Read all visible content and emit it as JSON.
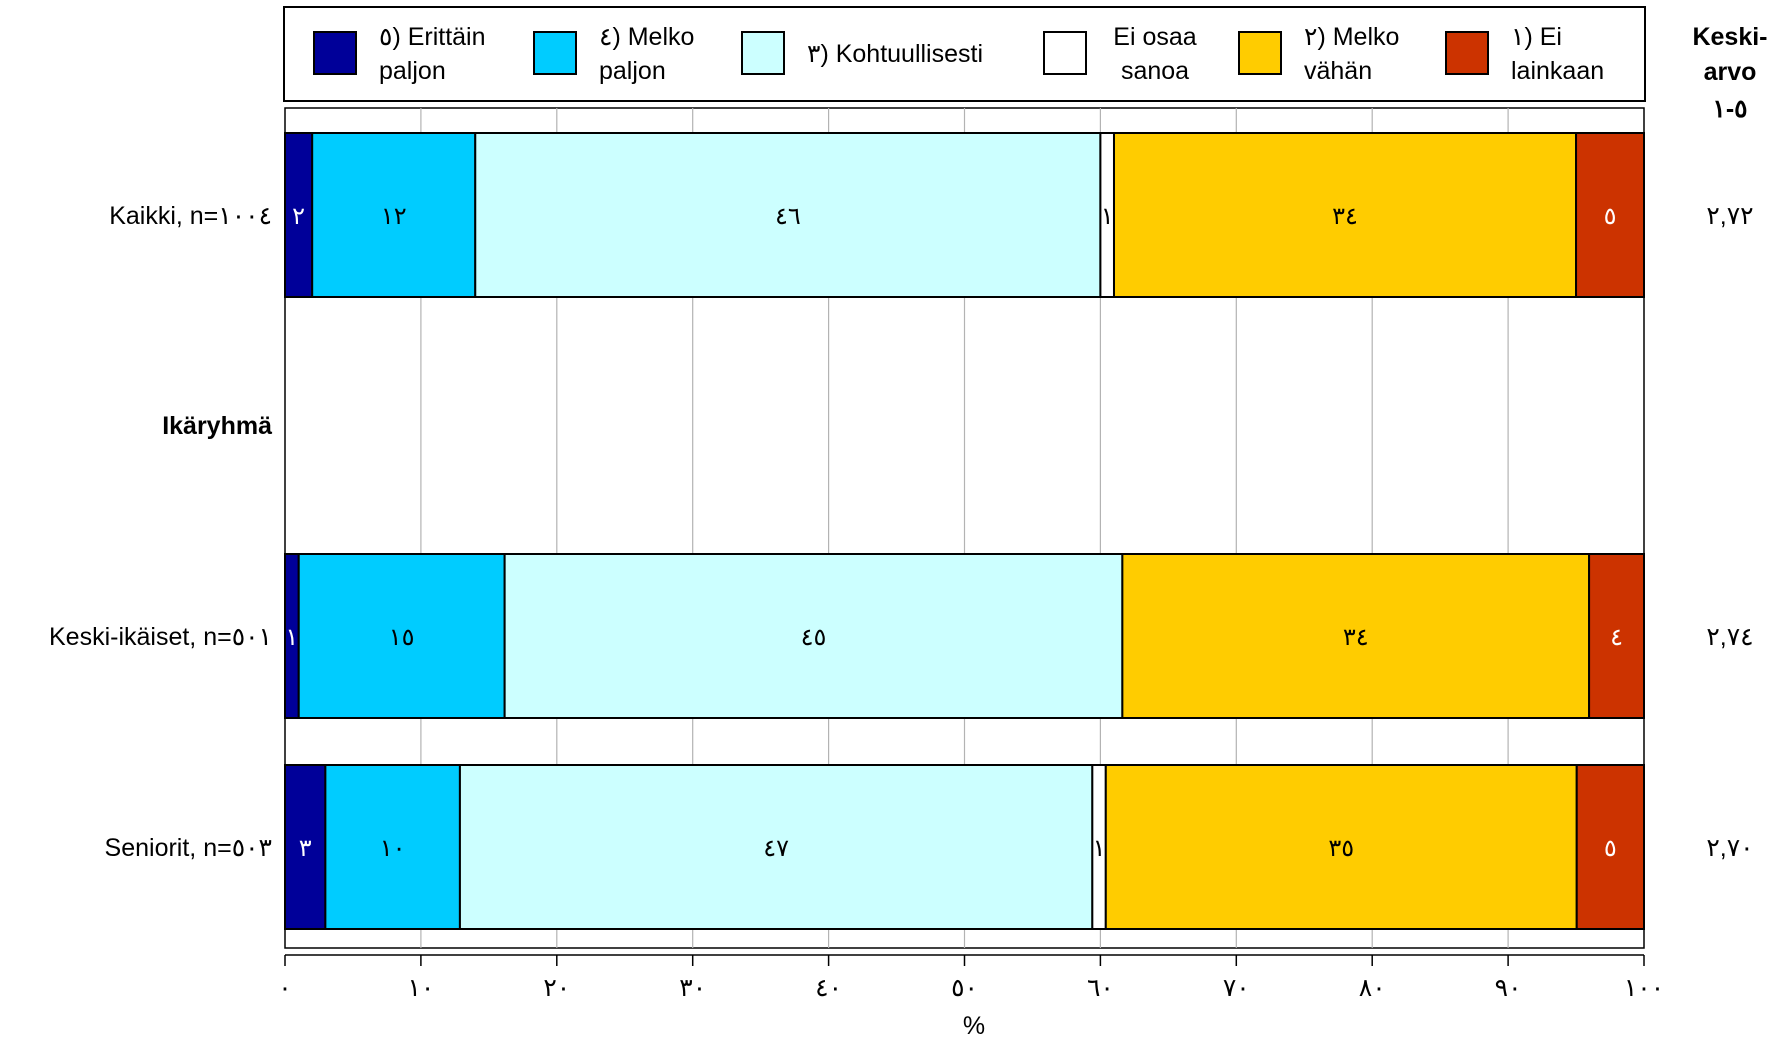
{
  "chart_data": {
    "type": "bar",
    "stacked": true,
    "orientation": "horizontal",
    "xlabel": "%",
    "xlim": [
      0,
      100
    ],
    "grid": true,
    "legend_position": "top",
    "x_ticks": [
      "٠",
      "١٠",
      "٢٠",
      "٣٠",
      "٤٠",
      "٥٠",
      "٦٠",
      "٧٠",
      "٨٠",
      "٩٠",
      "١٠٠"
    ],
    "mean_header": [
      "Keski-",
      "arvo",
      "٥-١"
    ],
    "rows": [
      {
        "label": "Kaikki, n=١٠٠٤",
        "group": false,
        "mean": "٢,٧٢",
        "values": [
          2,
          12,
          46,
          1,
          34,
          5
        ],
        "value_labels": [
          "٢",
          "١٢",
          "٤٦",
          "١",
          "٣٤",
          "٥"
        ]
      },
      {
        "label": "Ikäryhmä",
        "group": true
      },
      {
        "label": "Keski-ikäiset, n=٥٠١",
        "group": false,
        "mean": "٢,٧٤",
        "values": [
          1,
          15,
          45,
          0,
          34,
          4
        ],
        "value_labels": [
          "١",
          "١٥",
          "٤٥",
          "",
          "٣٤",
          "٤"
        ]
      },
      {
        "label": "Seniorit, n=٥٠٣",
        "group": false,
        "mean": "٢,٧٠",
        "values": [
          3,
          10,
          47,
          1,
          35,
          5
        ],
        "value_labels": [
          "٣",
          "١٠",
          "٤٧",
          "١",
          "٣٥",
          "٥"
        ]
      }
    ],
    "series": [
      {
        "name": [
          "٥) Erittäin",
          "paljon"
        ],
        "color": "#000099"
      },
      {
        "name": [
          "٤) Melko",
          "paljon"
        ],
        "color": "#00ccff"
      },
      {
        "name": [
          "٣) Kohtuullisesti"
        ],
        "color": "#ccffff"
      },
      {
        "name": [
          "Ei osaa",
          "sanoa"
        ],
        "color": "#ffffff"
      },
      {
        "name": [
          "٢) Melko",
          "vähän"
        ],
        "color": "#ffcc00"
      },
      {
        "name": [
          "١) Ei",
          "lainkaan"
        ],
        "color": "#cc3300"
      }
    ]
  }
}
